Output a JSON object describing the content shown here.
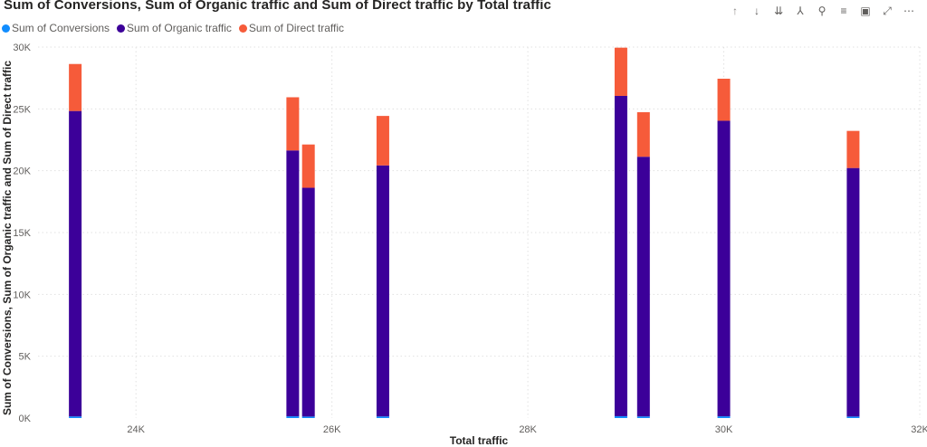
{
  "toolbar": {
    "icons": [
      "arrow-up-icon",
      "arrow-down-icon",
      "double-arrow-down-icon",
      "expand-hierarchy-icon",
      "pin-icon",
      "filter-icon",
      "focus-mode-icon",
      "expand-icon",
      "more-options-icon"
    ]
  },
  "colors": {
    "conversions": "#118DFF",
    "organic": "#3C0099",
    "direct": "#F65B3A",
    "grid": "#e1e1e1"
  },
  "chart_data": {
    "type": "bar",
    "stacked": true,
    "title": "Sum of Conversions, Sum of Organic traffic and Sum of Direct traffic by Total traffic",
    "xlabel": "Total traffic",
    "ylabel": "Sum of Conversions, Sum of Organic traffic and Sum of Direct traffic",
    "xlim": [
      23000,
      32000
    ],
    "ylim": [
      0,
      30000
    ],
    "x_ticks": [
      {
        "value": 24000,
        "label": "24K"
      },
      {
        "value": 26000,
        "label": "26K"
      },
      {
        "value": 28000,
        "label": "28K"
      },
      {
        "value": 30000,
        "label": "30K"
      },
      {
        "value": 32000,
        "label": "32K"
      }
    ],
    "y_ticks": [
      {
        "value": 0,
        "label": "0K"
      },
      {
        "value": 5000,
        "label": "5K"
      },
      {
        "value": 10000,
        "label": "10K"
      },
      {
        "value": 15000,
        "label": "15K"
      },
      {
        "value": 20000,
        "label": "20K"
      },
      {
        "value": 25000,
        "label": "25K"
      },
      {
        "value": 30000,
        "label": "30K"
      }
    ],
    "grid": true,
    "legend_position": "top-left",
    "x": [
      23380,
      25600,
      25760,
      26520,
      28950,
      29180,
      30000,
      31320
    ],
    "series": [
      {
        "name": "Sum of Conversions",
        "values": [
          130,
          140,
          120,
          130,
          150,
          130,
          140,
          120
        ]
      },
      {
        "name": "Sum of Organic traffic",
        "values": [
          24700,
          21500,
          18500,
          20300,
          25900,
          21000,
          23900,
          20100
        ]
      },
      {
        "name": "Sum of Direct traffic",
        "values": [
          3800,
          4300,
          3500,
          4000,
          3900,
          3600,
          3400,
          3000
        ]
      }
    ]
  }
}
